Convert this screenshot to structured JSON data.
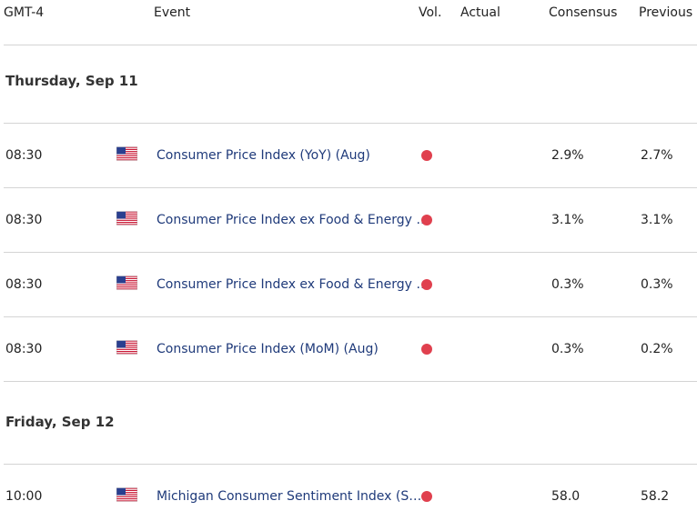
{
  "header": {
    "columns": [
      "GMT-4",
      "Event",
      "Vol.",
      "Actual",
      "Consensus",
      "Previous"
    ]
  },
  "sections": [
    {
      "date": "Thursday, Sep 11",
      "rows": [
        {
          "time": "08:30",
          "event": "Consumer Price Index (YoY) (Aug)",
          "consensus": "2.9%",
          "previous": "2.7%"
        },
        {
          "time": "08:30",
          "event": "Consumer Price Index ex Food & Energy …",
          "consensus": "3.1%",
          "previous": "3.1%"
        },
        {
          "time": "08:30",
          "event": "Consumer Price Index ex Food & Energy …",
          "consensus": "0.3%",
          "previous": "0.3%"
        },
        {
          "time": "08:30",
          "event": "Consumer Price Index (MoM) (Aug)",
          "consensus": "0.3%",
          "previous": "0.2%"
        }
      ]
    },
    {
      "date": "Friday, Sep 12",
      "rows": [
        {
          "time": "10:00",
          "event": "Michigan Consumer Sentiment Index (S…",
          "consensus": "58.0",
          "previous": "58.2"
        }
      ]
    }
  ]
}
